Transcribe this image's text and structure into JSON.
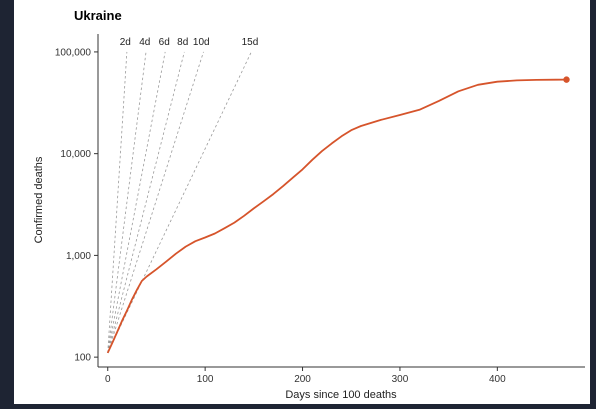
{
  "chart_data": {
    "type": "line",
    "title": "Ukraine",
    "xlabel": "Days since 100 deaths",
    "ylabel": "Confirmed deaths",
    "x_ticks": [
      0,
      100,
      200,
      300,
      400
    ],
    "y_scale": "log",
    "y_ticks": [
      100,
      1000,
      10000,
      100000
    ],
    "y_tick_labels": [
      "100",
      "1,000",
      "10,000",
      "100,000"
    ],
    "xlim": [
      -10,
      490
    ],
    "ylim": [
      80,
      150000
    ],
    "grid": false,
    "line_color": "#d6542b",
    "guide_color": "#9a9a9a",
    "doubling_guides": [
      {
        "label": "2d",
        "days": 2,
        "label_x": 18
      },
      {
        "label": "4d",
        "days": 4,
        "label_x": 38
      },
      {
        "label": "6d",
        "days": 6,
        "label_x": 58
      },
      {
        "label": "8d",
        "days": 8,
        "label_x": 77
      },
      {
        "label": "10d",
        "days": 10,
        "label_x": 96
      },
      {
        "label": "15d",
        "days": 15,
        "label_x": 146
      }
    ],
    "series": [
      {
        "x": [
          0,
          5,
          10,
          15,
          20,
          25,
          30,
          35,
          40,
          50,
          60,
          70,
          80,
          90,
          100,
          110,
          120,
          130,
          140,
          150,
          160,
          170,
          180,
          190,
          200,
          210,
          220,
          230,
          240,
          250,
          260,
          280,
          300,
          320,
          340,
          360,
          380,
          400,
          420,
          440,
          460,
          471
        ],
        "y": [
          110,
          140,
          180,
          230,
          290,
          370,
          460,
          560,
          620,
          730,
          870,
          1040,
          1220,
          1380,
          1500,
          1640,
          1850,
          2100,
          2450,
          2900,
          3400,
          4000,
          4800,
          5800,
          7000,
          8700,
          10600,
          12600,
          14800,
          17000,
          18700,
          21400,
          24000,
          27000,
          33000,
          41000,
          47500,
          51000,
          52500,
          53100,
          53300,
          53400
        ]
      }
    ]
  }
}
